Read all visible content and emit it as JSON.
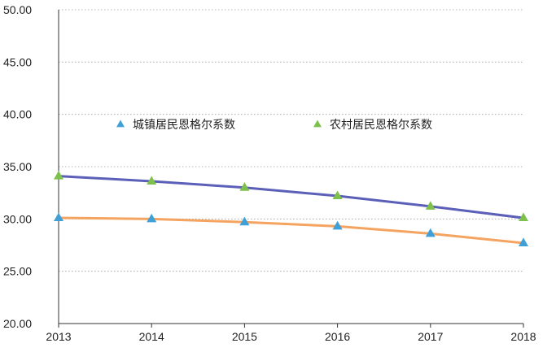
{
  "chart_data": {
    "type": "line",
    "title": "",
    "xlabel": "",
    "ylabel": "",
    "categories": [
      "2013",
      "2014",
      "2015",
      "2016",
      "2017",
      "2018"
    ],
    "yticks": [
      "20.00",
      "25.00",
      "30.00",
      "35.00",
      "40.00",
      "45.00",
      "50.00"
    ],
    "ylim": [
      20,
      50
    ],
    "grid": true,
    "legend_position": "center",
    "series": [
      {
        "name": "城镇居民恩格尔系数",
        "values": [
          30.1,
          30.0,
          29.7,
          29.3,
          28.6,
          27.7
        ],
        "line_color": "#F4A460",
        "marker_color": "#3FA0D8"
      },
      {
        "name": "农村居民恩格尔系数",
        "values": [
          34.1,
          33.6,
          33.0,
          32.2,
          31.2,
          30.1
        ],
        "line_color": "#5B5FB7",
        "marker_color": "#7DC04B"
      }
    ]
  }
}
